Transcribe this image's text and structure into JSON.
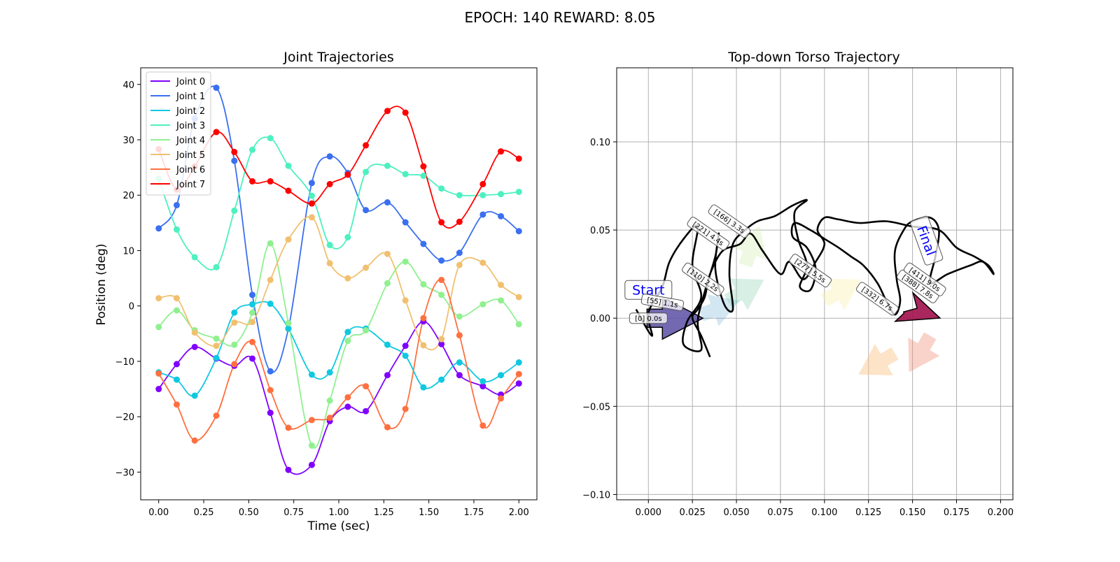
{
  "suptitle": "EPOCH: 140 REWARD:   8.05",
  "chart_data": [
    {
      "type": "line",
      "title": "Joint Trajectories",
      "xlabel": "Time (sec)",
      "ylabel": "Position (deg)",
      "xlim": [
        -0.1,
        2.1
      ],
      "ylim": [
        -35,
        43
      ],
      "xticks": [
        "0.00",
        "0.25",
        "0.50",
        "0.75",
        "1.00",
        "1.25",
        "1.50",
        "1.75",
        "2.00"
      ],
      "xtick_values": [
        0,
        0.25,
        0.5,
        0.75,
        1.0,
        1.25,
        1.5,
        1.75,
        2.0
      ],
      "yticks": [
        "−30",
        "−20",
        "−10",
        "0",
        "10",
        "20",
        "30",
        "40"
      ],
      "ytick_values": [
        -30,
        -20,
        -10,
        0,
        10,
        20,
        30,
        40
      ],
      "legend_position": "top-left",
      "grid": false,
      "x": [
        0.0,
        0.1,
        0.2,
        0.32,
        0.42,
        0.52,
        0.62,
        0.72,
        0.85,
        0.95,
        1.05,
        1.15,
        1.27,
        1.37,
        1.47,
        1.57,
        1.67,
        1.8,
        1.9,
        2.0
      ],
      "series": [
        {
          "name": "Joint 0",
          "color": "#8000ff",
          "values": [
            -15,
            -10.5,
            -7.4,
            -9.5,
            -10.8,
            -9.5,
            -19.3,
            -29.6,
            -28.7,
            -20.8,
            -18.2,
            -19,
            -12.5,
            -7.2,
            -2.8,
            -6.9,
            -12.5,
            -14.5,
            -16,
            -14
          ]
        },
        {
          "name": "Joint 1",
          "color": "#3a6ff0",
          "values": [
            14,
            18.2,
            33.8,
            39.4,
            26.2,
            2,
            -11.8,
            -4.1,
            22.2,
            27,
            24,
            17.3,
            18.7,
            15.1,
            11.2,
            8.2,
            9.6,
            16.5,
            16.2,
            13.5
          ]
        },
        {
          "name": "Joint 2",
          "color": "#10c8e0",
          "values": [
            -12,
            -13.3,
            -16.2,
            -9.4,
            -1.2,
            0.3,
            0.4,
            -4.1,
            -12.4,
            -12,
            -4.7,
            -4.1,
            -7,
            -9,
            -14.7,
            -13.3,
            -10.2,
            -13.6,
            -12.5,
            -10.2
          ]
        },
        {
          "name": "Joint 3",
          "color": "#4df0c0",
          "values": [
            23,
            13.8,
            8.8,
            7,
            17.2,
            28.2,
            30.3,
            25.3,
            19.9,
            11,
            12.4,
            24.2,
            25.3,
            23.8,
            23.5,
            21.2,
            20,
            20,
            20.2,
            20.6
          ]
        },
        {
          "name": "Joint 4",
          "color": "#90f090",
          "values": [
            -3.8,
            -0.8,
            -4.4,
            -5.9,
            -7,
            -1.2,
            11.3,
            -3.1,
            -25.2,
            -17.1,
            -6.3,
            -4.4,
            4.1,
            8,
            3.9,
            2,
            -1.9,
            0.3,
            1,
            -3.3
          ]
        },
        {
          "name": "Joint 5",
          "color": "#f0c070",
          "values": [
            1.4,
            1.4,
            -4.8,
            -7.2,
            -3,
            -2.9,
            4.7,
            12,
            16,
            7.7,
            5,
            6.9,
            9.4,
            1,
            -7.1,
            -6,
            7.4,
            7.8,
            3.8,
            1.6
          ]
        },
        {
          "name": "Joint 6",
          "color": "#ff7040",
          "values": [
            -12.2,
            -17.8,
            -24.3,
            -19.8,
            -10.5,
            -6.5,
            -15.2,
            -22,
            -20.6,
            -20.2,
            -16.5,
            -14.5,
            -21.9,
            -18.6,
            -2.2,
            4.7,
            -5.3,
            -21.6,
            -16.7,
            -12.3
          ]
        },
        {
          "name": "Joint 7",
          "color": "#ff0000",
          "values": [
            28.3,
            21,
            25.2,
            31.4,
            27.8,
            22.5,
            22.5,
            20.8,
            18.5,
            22,
            23.7,
            29,
            35.2,
            34.9,
            25.2,
            15.1,
            15.2,
            22,
            27.9,
            26.6
          ]
        }
      ]
    },
    {
      "type": "line",
      "title": "Top-down Torso Trajectory",
      "xlim": [
        -0.018,
        0.207
      ],
      "ylim": [
        -0.103,
        0.142
      ],
      "xticks": [
        "0.000",
        "0.025",
        "0.050",
        "0.075",
        "0.100",
        "0.125",
        "0.150",
        "0.175",
        "0.200"
      ],
      "xtick_values": [
        0,
        0.025,
        0.05,
        0.075,
        0.1,
        0.125,
        0.15,
        0.175,
        0.2
      ],
      "yticks": [
        "−0.10",
        "−0.05",
        "0.00",
        "0.05",
        "0.10"
      ],
      "ytick_values": [
        -0.1,
        -0.05,
        0,
        0.05,
        0.1
      ],
      "grid": true,
      "path": [
        [
          -0.007,
          0.005
        ],
        [
          0.002,
          -0.01
        ],
        [
          0.0,
          0.003
        ],
        [
          0.008,
          0.018
        ],
        [
          0.012,
          0.032
        ],
        [
          0.02,
          0.045
        ],
        [
          0.028,
          0.052
        ],
        [
          0.025,
          0.03
        ],
        [
          0.03,
          0.012
        ],
        [
          0.022,
          -0.002
        ],
        [
          0.02,
          -0.015
        ],
        [
          0.03,
          -0.018
        ],
        [
          0.028,
          -0.002
        ],
        [
          0.032,
          0.015
        ],
        [
          0.038,
          0.035
        ],
        [
          0.04,
          0.048
        ],
        [
          0.038,
          0.028
        ],
        [
          0.043,
          0.008
        ],
        [
          0.048,
          0.005
        ],
        [
          0.046,
          0.025
        ],
        [
          0.048,
          0.042
        ],
        [
          0.055,
          0.05
        ],
        [
          0.062,
          0.055
        ],
        [
          0.072,
          0.058
        ],
        [
          0.082,
          0.064
        ],
        [
          0.09,
          0.067
        ],
        [
          0.083,
          0.06
        ],
        [
          0.085,
          0.045
        ],
        [
          0.09,
          0.03
        ],
        [
          0.086,
          0.018
        ],
        [
          0.092,
          0.016
        ],
        [
          0.095,
          0.028
        ],
        [
          0.09,
          0.04
        ],
        [
          0.082,
          0.046
        ],
        [
          0.083,
          0.054
        ],
        [
          0.092,
          0.05
        ],
        [
          0.1,
          0.045
        ],
        [
          0.108,
          0.04
        ],
        [
          0.115,
          0.035
        ],
        [
          0.122,
          0.03
        ],
        [
          0.13,
          0.02
        ],
        [
          0.135,
          0.01
        ],
        [
          0.14,
          0.002
        ],
        [
          0.143,
          0.01
        ],
        [
          0.141,
          0.022
        ],
        [
          0.14,
          0.038
        ],
        [
          0.145,
          0.05
        ],
        [
          0.15,
          0.055
        ],
        [
          0.16,
          0.057
        ],
        [
          0.165,
          0.05
        ],
        [
          0.163,
          0.035
        ],
        [
          0.16,
          0.02
        ],
        [
          0.17,
          0.025
        ],
        [
          0.183,
          0.03
        ],
        [
          0.19,
          0.032
        ],
        [
          0.196,
          0.025
        ],
        [
          0.193,
          0.03
        ],
        [
          0.185,
          0.035
        ],
        [
          0.175,
          0.04
        ],
        [
          0.165,
          0.05
        ],
        [
          0.15,
          0.052
        ],
        [
          0.135,
          0.055
        ],
        [
          0.12,
          0.054
        ],
        [
          0.108,
          0.056
        ],
        [
          0.1,
          0.057
        ],
        [
          0.096,
          0.05
        ],
        [
          0.1,
          0.042
        ],
        [
          0.095,
          0.032
        ],
        [
          0.088,
          0.022
        ],
        [
          0.08,
          0.032
        ],
        [
          0.075,
          0.025
        ],
        [
          0.065,
          0.038
        ],
        [
          0.058,
          0.048
        ],
        [
          0.052,
          0.042
        ],
        [
          0.042,
          0.038
        ],
        [
          0.035,
          0.025
        ],
        [
          0.032,
          0.012
        ],
        [
          0.028,
          0.005
        ],
        [
          0.025,
          0.0
        ],
        [
          0.03,
          -0.01
        ],
        [
          0.035,
          -0.022
        ]
      ],
      "annotations": [
        {
          "text": "Start",
          "x": 0.0,
          "y": 0.016,
          "color": "#0000ff"
        },
        {
          "text": "Final",
          "x": 0.158,
          "y": 0.044,
          "color": "#0000ff"
        },
        {
          "text": "[0] 0.0s",
          "x": 0.0,
          "y": 0.0
        },
        {
          "text": "[55] 1.1s",
          "x": 0.008,
          "y": 0.009
        },
        {
          "text": "[110] 2.2s",
          "x": 0.031,
          "y": 0.022
        },
        {
          "text": "[166] 3.3s",
          "x": 0.046,
          "y": 0.055
        },
        {
          "text": "[221] 4.4s",
          "x": 0.034,
          "y": 0.048
        },
        {
          "text": "[277] 5.5s",
          "x": 0.092,
          "y": 0.027
        },
        {
          "text": "[332] 6.7s",
          "x": 0.13,
          "y": 0.011
        },
        {
          "text": "[388] 7.8s",
          "x": 0.153,
          "y": 0.018
        },
        {
          "text": "[411] 9.0s",
          "x": 0.157,
          "y": 0.022
        }
      ],
      "heading_arrows": [
        {
          "x": 0.0,
          "y": 0.0,
          "color": "#5b4fa4"
        },
        {
          "x": 0.03,
          "y": 0.002,
          "color": "#4aa0c8"
        },
        {
          "x": 0.045,
          "y": 0.01,
          "color": "#7cc9a5"
        },
        {
          "x": 0.055,
          "y": 0.03,
          "color": "#c8e8a0"
        },
        {
          "x": 0.1,
          "y": 0.01,
          "color": "#faf0b0"
        },
        {
          "x": 0.14,
          "y": -0.02,
          "color": "#fcc890"
        },
        {
          "x": 0.16,
          "y": -0.01,
          "color": "#f0907a"
        },
        {
          "x": 0.15,
          "y": 0.0,
          "color": "#a0104a"
        }
      ]
    }
  ]
}
